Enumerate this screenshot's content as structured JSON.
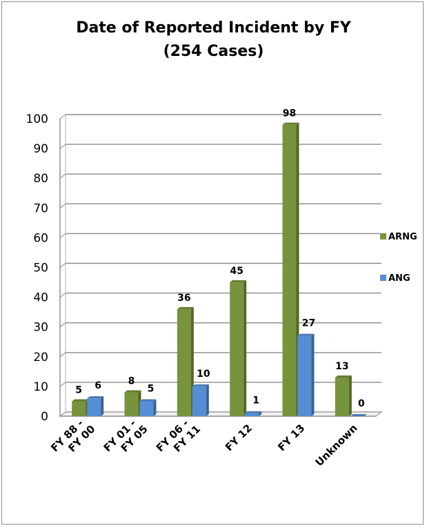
{
  "chart_data": {
    "type": "bar",
    "title": "Date of Reported Incident by FY",
    "subtitle": "(254 Cases)",
    "categories": [
      "FY 88 - FY 00",
      "FY 01 - FY 05",
      "FY 06 - FY 11",
      "FY 12",
      "FY 13",
      "Unknown"
    ],
    "category_lines": [
      [
        "FY 88 -",
        "FY 00"
      ],
      [
        "FY 01 -",
        "FY 05"
      ],
      [
        "FY 06 -",
        "FY 11"
      ],
      [
        "",
        "FY 12"
      ],
      [
        "",
        "FY 13"
      ],
      [
        "",
        "Unknown"
      ]
    ],
    "series": [
      {
        "name": "ARNG",
        "values": [
          5,
          8,
          36,
          45,
          98,
          13
        ],
        "color": "#77933c"
      },
      {
        "name": "ANG",
        "values": [
          6,
          5,
          10,
          1,
          27,
          0
        ],
        "color": "#558ed5"
      }
    ],
    "ylim": [
      0,
      100
    ],
    "yticks": [
      0,
      10,
      20,
      30,
      40,
      50,
      60,
      70,
      80,
      90,
      100
    ],
    "grid": true,
    "legend_position": "right",
    "style": "3d-clustered-bar"
  }
}
